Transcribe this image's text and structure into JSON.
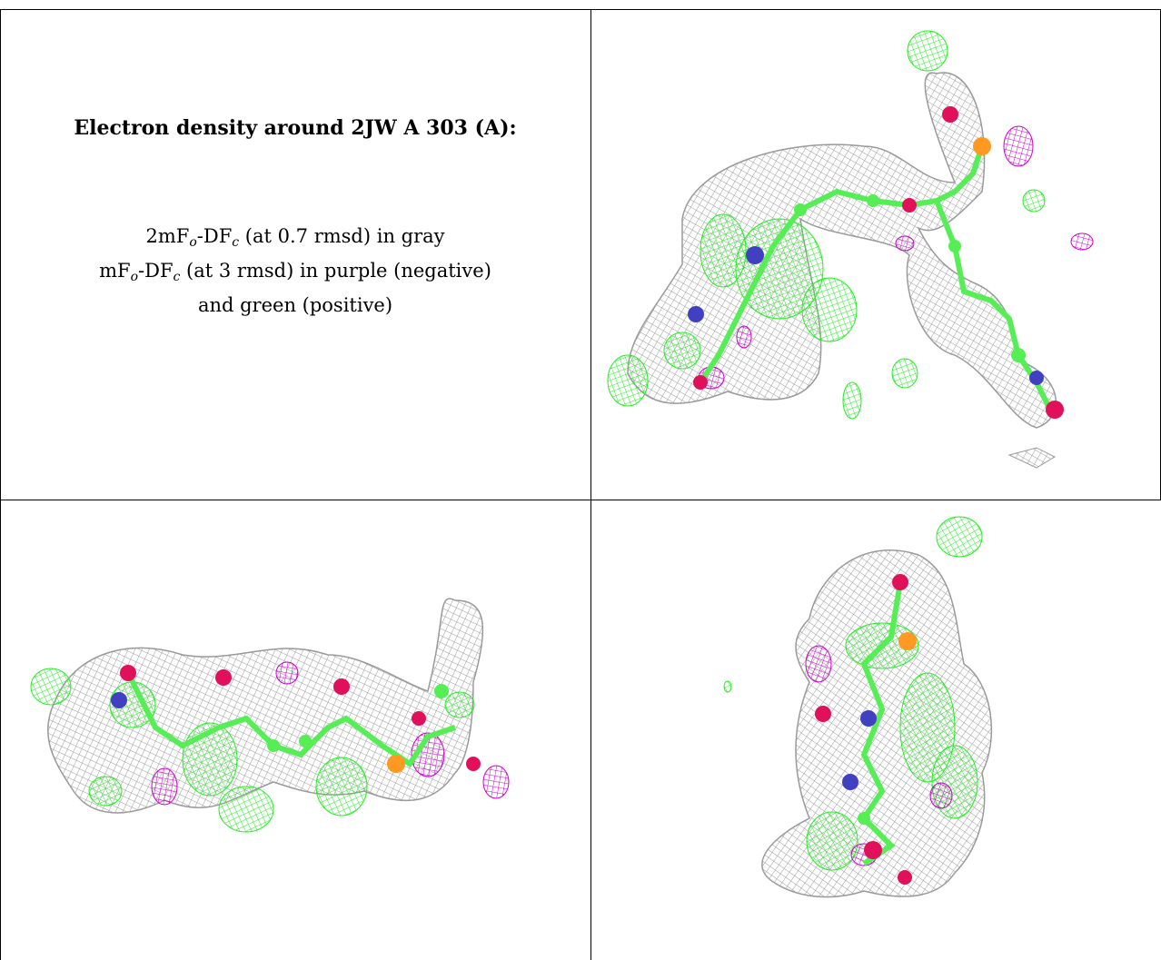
{
  "caption": {
    "title": "Electron density around 2JW A 303 (A):",
    "line1_prefix": "2mF",
    "line1_sub_o": "o",
    "line1_mid": "-DF",
    "line1_sub_c": "c",
    "line1_suffix": " (at 0.7 rmsd) in gray",
    "line2_prefix": "mF",
    "line2_sub_o": "o",
    "line2_mid": "-DF",
    "line2_sub_c": "c",
    "line2_suffix": " (at 3 rmsd) in purple (negative)",
    "line3": "and green (positive)"
  },
  "colors": {
    "density_2fofc": "#9a9a9a",
    "density_positive": "#33ee33",
    "density_negative": "#cc00cc",
    "atom_carbon": "#55ee55",
    "atom_oxygen": "#e0105a",
    "atom_nitrogen": "#4040c0",
    "atom_phosphorus": "#ff9922"
  },
  "views": [
    {
      "name": "view-top-right"
    },
    {
      "name": "view-bottom-left"
    },
    {
      "name": "view-bottom-right"
    }
  ]
}
